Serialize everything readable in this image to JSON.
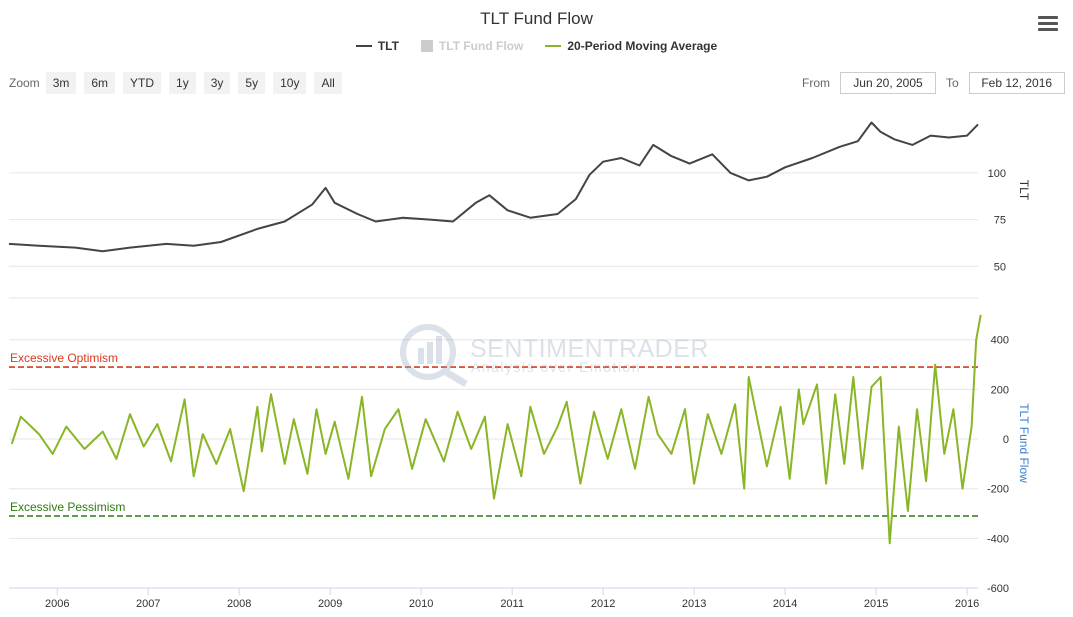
{
  "title": "TLT Fund Flow",
  "legend": [
    {
      "label": "TLT",
      "color": "#444444",
      "kind": "line",
      "active": true
    },
    {
      "label": "TLT Fund Flow",
      "color": "#cccccc",
      "kind": "box",
      "active": false
    },
    {
      "label": "20-Period Moving Average",
      "color": "#8ab526",
      "kind": "line",
      "active": true
    }
  ],
  "zoom": {
    "label": "Zoom",
    "buttons": [
      "3m",
      "6m",
      "YTD",
      "1y",
      "3y",
      "5y",
      "10y",
      "All"
    ]
  },
  "range": {
    "from_label": "From",
    "from_value": "Jun 20, 2005",
    "to_label": "To",
    "to_value": "Feb 12, 2016"
  },
  "watermark": {
    "brand": "SENTIMENTRADER",
    "tagline": "Analysis over Emotion"
  },
  "thresholds": {
    "optimism": {
      "label": "Excessive Optimism",
      "value": 290,
      "color": "#d93a1e"
    },
    "pessimism": {
      "label": "Excessive Pessimism",
      "value": -310,
      "color": "#2e7a12"
    }
  },
  "chart_data": [
    {
      "type": "line",
      "name": "TLT",
      "ylabel": "TLT",
      "yticks": [
        50,
        75,
        100
      ],
      "ylim": [
        33,
        138
      ],
      "color": "#444444",
      "x": [
        2005.47,
        2005.8,
        2006.2,
        2006.5,
        2006.8,
        2007.2,
        2007.5,
        2007.8,
        2008.2,
        2008.5,
        2008.8,
        2008.95,
        2009.05,
        2009.3,
        2009.5,
        2009.8,
        2010.1,
        2010.35,
        2010.6,
        2010.75,
        2010.95,
        2011.2,
        2011.5,
        2011.7,
        2011.85,
        2012.0,
        2012.2,
        2012.4,
        2012.55,
        2012.75,
        2012.95,
        2013.2,
        2013.4,
        2013.6,
        2013.8,
        2014.0,
        2014.3,
        2014.6,
        2014.8,
        2014.95,
        2015.05,
        2015.2,
        2015.4,
        2015.6,
        2015.8,
        2016.0,
        2016.12
      ],
      "values": [
        62,
        61,
        60,
        58,
        60,
        62,
        61,
        63,
        70,
        74,
        83,
        92,
        84,
        78,
        74,
        76,
        75,
        74,
        84,
        88,
        80,
        76,
        78,
        86,
        99,
        106,
        108,
        104,
        115,
        109,
        105,
        110,
        100,
        96,
        98,
        103,
        108,
        114,
        117,
        127,
        122,
        118,
        115,
        120,
        119,
        120,
        126
      ]
    },
    {
      "type": "line",
      "name": "20-Period Moving Average",
      "ylabel": "TLT Fund Flow",
      "yticks": [
        -600,
        -400,
        -200,
        0,
        200,
        400
      ],
      "ylim": [
        -600,
        560
      ],
      "color": "#8ab526",
      "x": [
        2005.5,
        2005.6,
        2005.8,
        2005.95,
        2006.1,
        2006.3,
        2006.5,
        2006.65,
        2006.8,
        2006.95,
        2007.1,
        2007.25,
        2007.4,
        2007.5,
        2007.6,
        2007.75,
        2007.9,
        2008.05,
        2008.2,
        2008.25,
        2008.35,
        2008.5,
        2008.6,
        2008.75,
        2008.85,
        2008.95,
        2009.05,
        2009.2,
        2009.35,
        2009.45,
        2009.6,
        2009.75,
        2009.9,
        2010.05,
        2010.25,
        2010.4,
        2010.55,
        2010.7,
        2010.8,
        2010.95,
        2011.1,
        2011.2,
        2011.35,
        2011.5,
        2011.6,
        2011.75,
        2011.9,
        2012.05,
        2012.2,
        2012.35,
        2012.5,
        2012.6,
        2012.75,
        2012.9,
        2013.0,
        2013.15,
        2013.3,
        2013.45,
        2013.55,
        2013.6,
        2013.8,
        2013.95,
        2014.05,
        2014.15,
        2014.2,
        2014.35,
        2014.45,
        2014.55,
        2014.65,
        2014.75,
        2014.85,
        2014.95,
        2015.05,
        2015.15,
        2015.25,
        2015.35,
        2015.45,
        2015.55,
        2015.65,
        2015.75,
        2015.85,
        2015.95,
        2016.05,
        2016.1,
        2016.15
      ],
      "values": [
        -20,
        90,
        20,
        -60,
        50,
        -40,
        30,
        -80,
        100,
        -30,
        60,
        -90,
        160,
        -150,
        20,
        -100,
        40,
        -210,
        130,
        -50,
        180,
        -100,
        80,
        -140,
        120,
        -60,
        70,
        -160,
        170,
        -150,
        40,
        120,
        -120,
        80,
        -90,
        110,
        -40,
        90,
        -240,
        60,
        -150,
        130,
        -60,
        50,
        150,
        -180,
        110,
        -80,
        120,
        -120,
        170,
        20,
        -60,
        120,
        -180,
        100,
        -60,
        140,
        -200,
        250,
        -110,
        130,
        -160,
        200,
        60,
        220,
        -180,
        180,
        -100,
        250,
        -120,
        210,
        250,
        -420,
        50,
        -290,
        120,
        -170,
        300,
        -60,
        120,
        -200,
        50,
        400,
        500
      ]
    }
  ],
  "xaxis": {
    "ticks": [
      "2006",
      "2007",
      "2008",
      "2009",
      "2010",
      "2011",
      "2012",
      "2013",
      "2014",
      "2015",
      "2016"
    ],
    "xlim": [
      2005.47,
      2016.12
    ]
  }
}
